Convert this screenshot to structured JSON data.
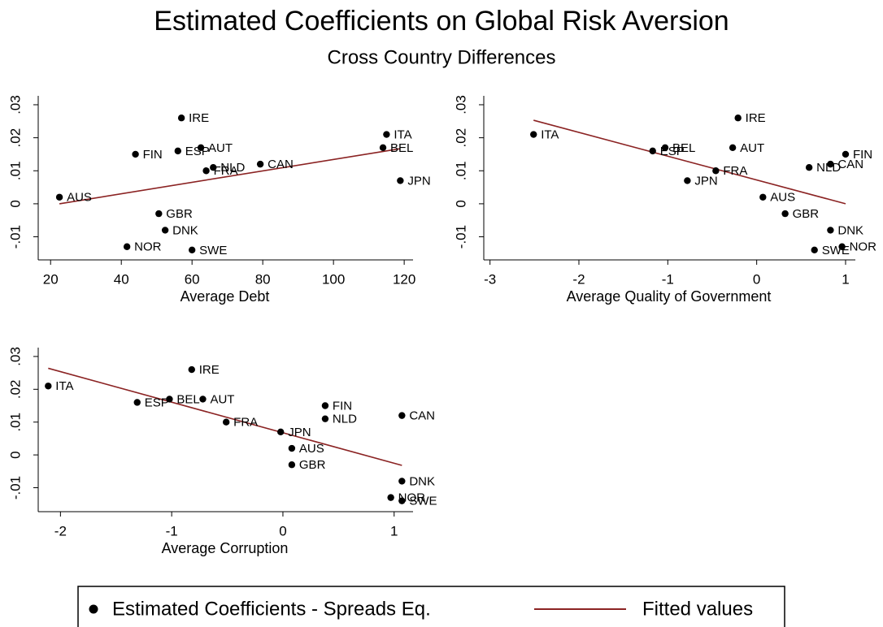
{
  "title": "Estimated Coefficients on Global Risk Aversion",
  "subtitle": "Cross Country Differences",
  "legend": {
    "items": [
      {
        "name": "Estimated Coefficients - Spreads Eq.",
        "color": "#000000",
        "marker": "dot"
      },
      {
        "name": "Fitted values",
        "color": "#8b2323",
        "marker": "line"
      }
    ]
  },
  "chart_data": [
    {
      "type": "scatter",
      "xlabel": "Average Debt",
      "labels": [
        "IRE",
        "ITA",
        "BEL",
        "FIN",
        "ESP",
        "AUT",
        "NLD",
        "FRA",
        "CAN",
        "JPN",
        "AUS",
        "GBR",
        "DNK",
        "NOR",
        "SWE"
      ],
      "x": [
        57,
        115,
        114,
        44,
        56,
        62.5,
        66,
        64,
        79.3,
        118.9,
        22.5,
        50.6,
        52.4,
        41.6,
        60
      ],
      "y": [
        0.026,
        0.021,
        0.017,
        0.015,
        0.016,
        0.017,
        0.011,
        0.01,
        0.012,
        0.007,
        0.002,
        -0.003,
        -0.008,
        -0.013,
        -0.014
      ],
      "fit": {
        "x": [
          22.5,
          118.9
        ],
        "y": [
          0.0,
          0.0167
        ]
      },
      "xlim": [
        16.5,
        122.5
      ],
      "ylim": [
        -0.017,
        0.0327
      ],
      "xticks": [
        20,
        40,
        60,
        80,
        100,
        120
      ],
      "yticks": [
        {
          "value": -0.01,
          "label": "-.01"
        },
        0,
        {
          "value": 0.01,
          "label": ".01"
        },
        {
          "value": 0.02,
          "label": ".02"
        },
        {
          "value": 0.03,
          "label": ".03"
        }
      ]
    },
    {
      "type": "scatter",
      "xlabel": "Average Quality of Government",
      "labels": [
        "ITA",
        "ESP",
        "BEL",
        "IRE",
        "AUT",
        "FRA",
        "JPN",
        "AUS",
        "GBR",
        "NLD",
        "CAN",
        "FIN",
        "DNK",
        "NOR",
        "SWE"
      ],
      "x": [
        -2.51,
        -1.17,
        -1.03,
        -0.21,
        -0.27,
        -0.46,
        -0.78,
        0.07,
        0.32,
        0.59,
        0.83,
        1.0,
        0.83,
        0.96,
        0.65
      ],
      "y": [
        0.021,
        0.016,
        0.017,
        0.026,
        0.017,
        0.01,
        0.007,
        0.002,
        -0.003,
        0.011,
        0.012,
        0.015,
        -0.008,
        -0.013,
        -0.014
      ],
      "fit": {
        "x": [
          -2.51,
          1.0
        ],
        "y": [
          0.0253,
          0.0
        ]
      },
      "xlim": [
        -3.07,
        1.11
      ],
      "ylim": [
        -0.017,
        0.0327
      ],
      "xticks": [
        -3,
        -2,
        -1,
        0,
        1
      ],
      "yticks": [
        {
          "value": -0.01,
          "label": "-.01"
        },
        0,
        {
          "value": 0.01,
          "label": ".01"
        },
        {
          "value": 0.02,
          "label": ".02"
        },
        {
          "value": 0.03,
          "label": ".03"
        }
      ]
    },
    {
      "type": "scatter",
      "xlabel": "Average Corruption",
      "labels": [
        "ITA",
        "ESP",
        "BEL",
        "IRE",
        "AUT",
        "FRA",
        "JPN",
        "AUS",
        "GBR",
        "FIN",
        "NLD",
        "CAN",
        "DNK",
        "NOR",
        "SWE"
      ],
      "x": [
        -2.11,
        -1.31,
        -1.02,
        -0.82,
        -0.72,
        -0.51,
        -0.02,
        0.08,
        0.08,
        0.38,
        0.38,
        1.07,
        1.07,
        0.97,
        1.07
      ],
      "y": [
        0.021,
        0.016,
        0.017,
        0.026,
        0.017,
        0.01,
        0.007,
        0.002,
        -0.003,
        0.015,
        0.011,
        0.012,
        -0.008,
        -0.013,
        -0.014
      ],
      "fit": {
        "x": [
          -2.11,
          1.07
        ],
        "y": [
          0.0264,
          -0.0032
        ]
      },
      "xlim": [
        -2.2,
        1.17
      ],
      "ylim": [
        -0.0173,
        0.0327
      ],
      "xticks": [
        -2,
        -1,
        0,
        1
      ],
      "yticks": [
        {
          "value": -0.01,
          "label": "-.01"
        },
        0,
        {
          "value": 0.01,
          "label": ".01"
        },
        {
          "value": 0.02,
          "label": ".02"
        },
        {
          "value": 0.03,
          "label": ".03"
        }
      ]
    }
  ]
}
